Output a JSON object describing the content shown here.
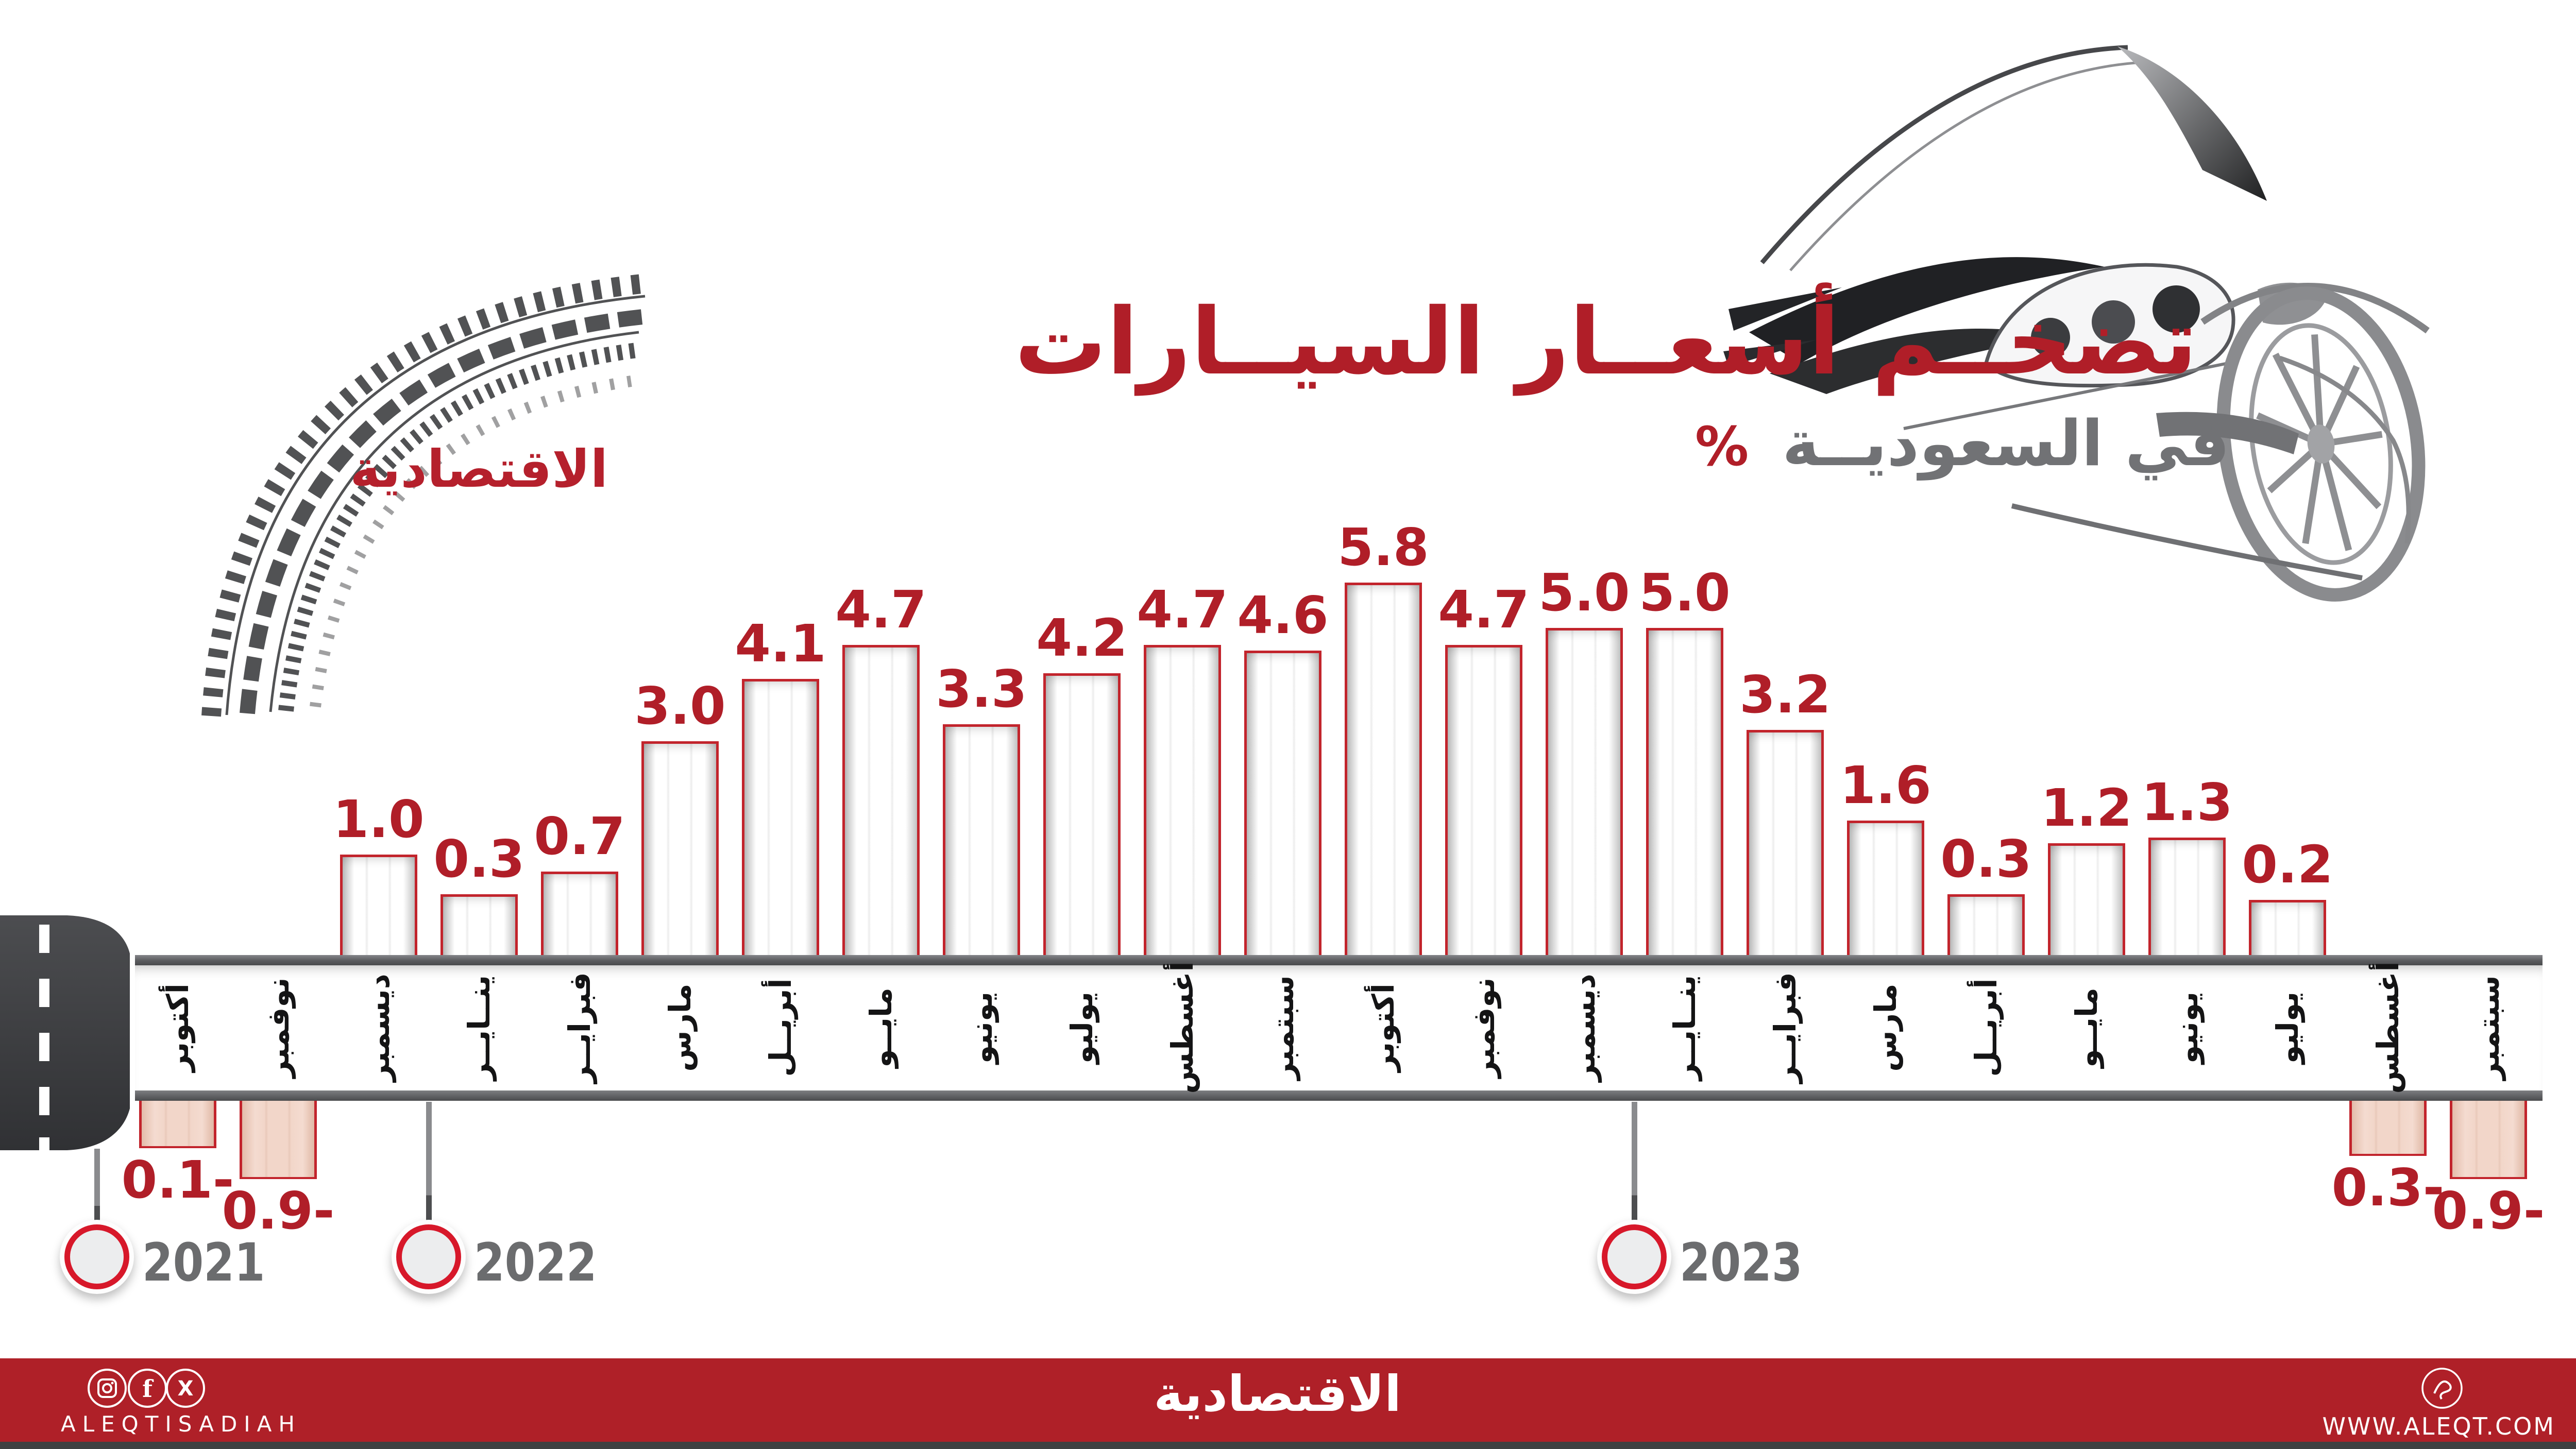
{
  "header": {
    "brand_logo": "الاقتصادية",
    "title_line1": "تضخــم أسعــار السيــارات",
    "title_line2": "في السعوديــة",
    "percent_symbol": "%"
  },
  "footer": {
    "brand_logo": "الاقتصادية",
    "name_en": "ALEQTISADIAH",
    "website": "WWW.ALEQT.COM",
    "icons": [
      "instagram-icon",
      "facebook-icon",
      "x-icon",
      "aleqt-emblem-icon"
    ]
  },
  "years": [
    {
      "label": "2021"
    },
    {
      "label": "2022"
    },
    {
      "label": "2023"
    }
  ],
  "colors": {
    "red_text": "#B01E28",
    "bar_border": "#C2242C",
    "negative_fill": "#F2D6C9",
    "gray_title": "#717275",
    "road_dark": "#4A4B4D",
    "footer_red": "#AF2028",
    "year_text": "#6B6C6E"
  },
  "chart_data": {
    "type": "bar",
    "title": "تضخــم أسعــار السيــارات في السعوديــة",
    "unit": "%",
    "ylabel": "%",
    "ylim": [
      -1,
      6
    ],
    "grid": false,
    "legend_position": "none",
    "categories": [
      "أكتوبر",
      "نوفمبر",
      "ديسمبر",
      "ينــايــر",
      "فبرايــر",
      "مارس",
      "أبريــل",
      "مايــو",
      "يونيو",
      "يوليو",
      "أغسطس",
      "سبتمبر",
      "أكتوبر",
      "نوفمبر",
      "ديسمبر",
      "ينــايــر",
      "فبرايــر",
      "مارس",
      "أبريــل",
      "مايــو",
      "يونيو",
      "يوليو",
      "أغسطس",
      "سبتمبر"
    ],
    "series": [
      {
        "name": "car-price-inflation-percent",
        "values": [
          -0.1,
          -0.9,
          1.0,
          0.3,
          0.7,
          3.0,
          4.1,
          4.7,
          3.3,
          4.2,
          4.7,
          4.6,
          5.8,
          4.7,
          5.0,
          5.0,
          3.2,
          1.6,
          0.3,
          1.2,
          1.3,
          0.2,
          -0.3,
          -0.9
        ]
      }
    ],
    "points": [
      {
        "month": "أكتوبر",
        "year": "2021",
        "value": -0.1,
        "label": "0.1-"
      },
      {
        "month": "نوفمبر",
        "year": "2021",
        "value": -0.9,
        "label": "0.9-"
      },
      {
        "month": "ديسمبر",
        "year": "2021",
        "value": 1.0,
        "label": "1.0"
      },
      {
        "month": "ينــايــر",
        "year": "2022",
        "value": 0.3,
        "label": "0.3"
      },
      {
        "month": "فبرايــر",
        "year": "2022",
        "value": 0.7,
        "label": "0.7"
      },
      {
        "month": "مارس",
        "year": "2022",
        "value": 3.0,
        "label": "3.0"
      },
      {
        "month": "أبريــل",
        "year": "2022",
        "value": 4.1,
        "label": "4.1"
      },
      {
        "month": "مايــو",
        "year": "2022",
        "value": 4.7,
        "label": "4.7"
      },
      {
        "month": "يونيو",
        "year": "2022",
        "value": 3.3,
        "label": "3.3"
      },
      {
        "month": "يوليو",
        "year": "2022",
        "value": 4.2,
        "label": "4.2"
      },
      {
        "month": "أغسطس",
        "year": "2022",
        "value": 4.7,
        "label": "4.7"
      },
      {
        "month": "سبتمبر",
        "year": "2022",
        "value": 4.6,
        "label": "4.6"
      },
      {
        "month": "أكتوبر",
        "year": "2022",
        "value": 5.8,
        "label": "5.8"
      },
      {
        "month": "نوفمبر",
        "year": "2022",
        "value": 4.7,
        "label": "4.7"
      },
      {
        "month": "ديسمبر",
        "year": "2022",
        "value": 5.0,
        "label": "5.0"
      },
      {
        "month": "ينــايــر",
        "year": "2023",
        "value": 5.0,
        "label": "5.0"
      },
      {
        "month": "فبرايــر",
        "year": "2023",
        "value": 3.2,
        "label": "3.2"
      },
      {
        "month": "مارس",
        "year": "2023",
        "value": 1.6,
        "label": "1.6"
      },
      {
        "month": "أبريــل",
        "year": "2023",
        "value": 0.3,
        "label": "0.3"
      },
      {
        "month": "مايــو",
        "year": "2023",
        "value": 1.2,
        "label": "1.2"
      },
      {
        "month": "يونيو",
        "year": "2023",
        "value": 1.3,
        "label": "1.3"
      },
      {
        "month": "يوليو",
        "year": "2023",
        "value": 0.2,
        "label": "0.2"
      },
      {
        "month": "أغسطس",
        "year": "2023",
        "value": -0.3,
        "label": "0.3-"
      },
      {
        "month": "سبتمبر",
        "year": "2023",
        "value": -0.9,
        "label": "0.9-"
      }
    ]
  }
}
